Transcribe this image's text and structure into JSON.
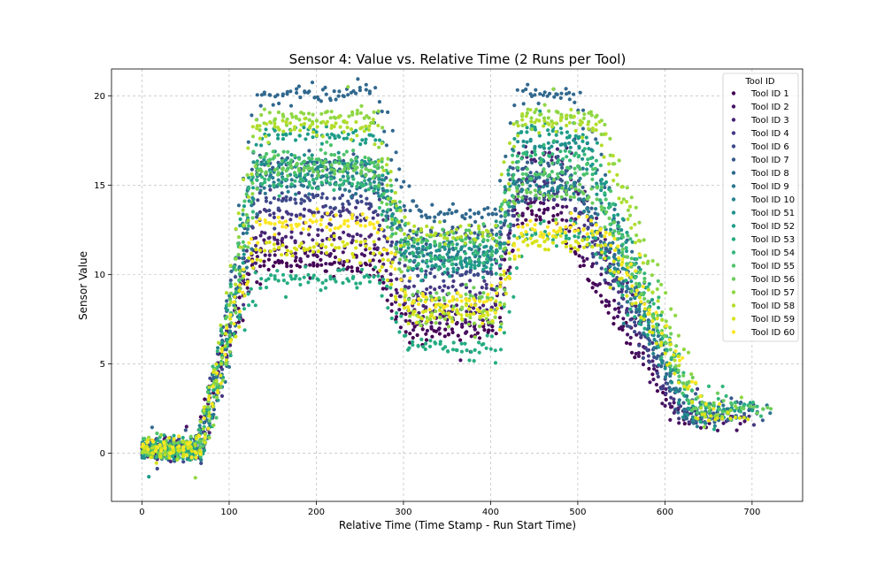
{
  "chart_data": {
    "type": "scatter",
    "title": "Sensor 4: Value vs. Relative Time (2 Runs per Tool)",
    "xlabel": "Relative Time (Time Stamp - Run Start Time)",
    "ylabel": "Sensor Value",
    "xlim": [
      -35,
      758
    ],
    "ylim": [
      -2.7,
      21.5
    ],
    "xticks": [
      0,
      100,
      200,
      300,
      400,
      500,
      600,
      700
    ],
    "yticks": [
      0,
      5,
      10,
      15,
      20
    ],
    "grid": true,
    "legend": {
      "title": "Tool ID",
      "placement": "upper right"
    },
    "series": [
      {
        "name": "Tool ID 1",
        "color": "#440154",
        "plateau": 10.5,
        "mid": 6.8,
        "second_plateau": 13.3,
        "end_value": 2.0
      },
      {
        "name": "Tool ID 2",
        "color": "#471365",
        "plateau": 11.2,
        "mid": 7.3,
        "second_plateau": 14.1,
        "end_value": 1.8
      },
      {
        "name": "Tool ID 3",
        "color": "#482475",
        "plateau": 12.1,
        "mid": 8.0,
        "second_plateau": 16.6,
        "end_value": 2.2
      },
      {
        "name": "Tool ID 4",
        "color": "#453781",
        "plateau": 13.4,
        "mid": 9.1,
        "second_plateau": 15.2,
        "end_value": 2.0
      },
      {
        "name": "Tool ID 6",
        "color": "#3e4989",
        "plateau": 14.2,
        "mid": 10.1,
        "second_plateau": 14.4,
        "end_value": 2.1
      },
      {
        "name": "Tool ID 7",
        "color": "#37598c",
        "plateau": 16.1,
        "mid": 12.1,
        "second_plateau": 16.0,
        "end_value": 2.6
      },
      {
        "name": "Tool ID 8",
        "color": "#31688e",
        "plateau": 20.1,
        "mid": 13.4,
        "second_plateau": 20.1,
        "end_value": 1.9
      },
      {
        "name": "Tool ID 9",
        "color": "#2b758e",
        "plateau": 15.0,
        "mid": 11.3,
        "second_plateau": 15.4,
        "end_value": 2.4
      },
      {
        "name": "Tool ID 10",
        "color": "#26828e",
        "plateau": 15.6,
        "mid": 10.8,
        "second_plateau": 14.8,
        "end_value": 2.3
      },
      {
        "name": "Tool ID 51",
        "color": "#21918c",
        "plateau": 16.3,
        "mid": 11.6,
        "second_plateau": 17.3,
        "end_value": 2.0
      },
      {
        "name": "Tool ID 52",
        "color": "#1e9d89",
        "plateau": 17.8,
        "mid": 10.4,
        "second_plateau": 17.9,
        "end_value": 2.5
      },
      {
        "name": "Tool ID 53",
        "color": "#25ab82",
        "plateau": 9.8,
        "mid": 6.0,
        "second_plateau": 12.2,
        "end_value": 2.2
      },
      {
        "name": "Tool ID 54",
        "color": "#35b779",
        "plateau": 15.2,
        "mid": 10.9,
        "second_plateau": 16.8,
        "end_value": 2.8
      },
      {
        "name": "Tool ID 55",
        "color": "#4ec36b",
        "plateau": 16.5,
        "mid": 12.0,
        "second_plateau": 15.8,
        "end_value": 2.4
      },
      {
        "name": "Tool ID 56",
        "color": "#6ccd5a",
        "plateau": 15.9,
        "mid": 8.7,
        "second_plateau": 14.5,
        "end_value": 2.6
      },
      {
        "name": "Tool ID 57",
        "color": "#8fd744",
        "plateau": 18.9,
        "mid": 7.6,
        "second_plateau": 18.9,
        "end_value": 2.2
      },
      {
        "name": "Tool ID 58",
        "color": "#b2dd2d",
        "plateau": 18.3,
        "mid": 12.3,
        "second_plateau": 18.4,
        "end_value": 2.1
      },
      {
        "name": "Tool ID 59",
        "color": "#d8e219",
        "plateau": 11.5,
        "mid": 7.9,
        "second_plateau": 11.8,
        "end_value": 2.0
      },
      {
        "name": "Tool ID 60",
        "color": "#fde725",
        "plateau": 12.9,
        "mid": 8.5,
        "second_plateau": 12.5,
        "end_value": 2.0
      }
    ]
  }
}
